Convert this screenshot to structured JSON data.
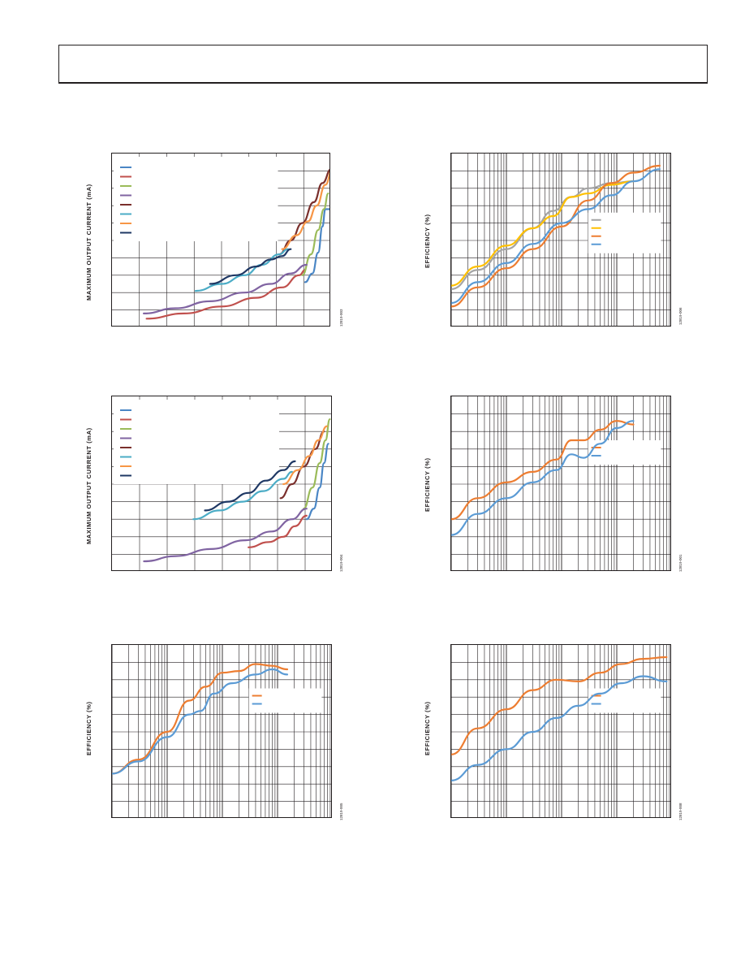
{
  "header": {
    "text": ""
  },
  "chart_data": [
    {
      "id": "fig-05003",
      "type": "line",
      "title": "",
      "ylabel": "MAXIMUM OUTPUT CURRENT (mA)",
      "xlabel": "",
      "xlim": [
        0,
        7.6
      ],
      "ylim": [
        0,
        10
      ],
      "grid": true,
      "log_x": false,
      "legend_position": "top-left",
      "fig_id": "12819-003",
      "series": [
        {
          "color": "#4a86c5",
          "x": [
            6.7,
            6.95,
            7.15,
            7.3,
            7.4,
            7.55
          ],
          "y": [
            2.6,
            3.1,
            4.3,
            5.8,
            6.8,
            6.8
          ]
        },
        {
          "color": "#c0504d",
          "x": [
            1.2,
            2.5,
            3.8,
            5.0,
            5.9,
            6.5,
            6.7
          ],
          "y": [
            0.5,
            0.8,
            1.2,
            1.7,
            2.3,
            3.0,
            3.3
          ]
        },
        {
          "color": "#9bbb59",
          "x": [
            6.6,
            6.9,
            7.15,
            7.35,
            7.5
          ],
          "y": [
            3.0,
            4.2,
            5.6,
            6.8,
            7.7
          ]
        },
        {
          "color": "#8064a2",
          "x": [
            1.1,
            2.2,
            3.4,
            4.6,
            5.5,
            6.2,
            6.75
          ],
          "y": [
            0.8,
            1.1,
            1.5,
            2.0,
            2.5,
            3.1,
            3.6
          ]
        },
        {
          "color": "#7a2f2c",
          "x": [
            5.8,
            6.2,
            6.6,
            7.0,
            7.3,
            7.6
          ],
          "y": [
            4.2,
            5.0,
            6.0,
            7.2,
            8.3,
            9.1
          ]
        },
        {
          "color": "#4bacc6",
          "x": [
            2.9,
            3.8,
            4.6,
            5.2,
            5.8,
            6.1
          ],
          "y": [
            2.1,
            2.5,
            3.0,
            3.6,
            4.2,
            4.5
          ]
        },
        {
          "color": "#f79646",
          "x": [
            5.9,
            6.4,
            6.8,
            7.1,
            7.4,
            7.65
          ],
          "y": [
            4.5,
            5.3,
            6.1,
            7.0,
            8.2,
            9.1
          ]
        },
        {
          "color": "#1f3864",
          "x": [
            3.4,
            4.3,
            5.0,
            5.5,
            5.9,
            6.2
          ],
          "y": [
            2.5,
            3.0,
            3.5,
            3.9,
            4.1,
            4.5
          ]
        }
      ]
    },
    {
      "id": "fig-05006",
      "type": "line",
      "title": "",
      "ylabel": "EFFICIENCY (%)",
      "xlabel": "",
      "xlim": [
        0.01,
        100
      ],
      "ylim": [
        0,
        100
      ],
      "grid": true,
      "log_x": true,
      "legend_position": "right",
      "fig_id": "12819-006",
      "series": [
        {
          "color": "#a5a5a5",
          "x": [
            0.01,
            0.03,
            0.1,
            0.3,
            0.7,
            1.5,
            3,
            8,
            20
          ],
          "y": [
            22,
            33,
            45,
            57,
            67,
            75,
            80,
            83,
            84
          ]
        },
        {
          "color": "#ffc000",
          "x": [
            0.01,
            0.03,
            0.1,
            0.3,
            0.7,
            1.5,
            3,
            8,
            20
          ],
          "y": [
            24,
            35,
            47,
            57,
            64,
            75,
            77,
            82,
            84
          ]
        },
        {
          "color": "#ed7d31",
          "x": [
            0.01,
            0.03,
            0.1,
            0.3,
            1,
            3,
            8,
            20,
            60
          ],
          "y": [
            12,
            23,
            34,
            45,
            58,
            73,
            83,
            89,
            93
          ]
        },
        {
          "color": "#5b9bd5",
          "x": [
            0.01,
            0.03,
            0.1,
            0.3,
            1,
            3,
            8,
            20,
            60
          ],
          "y": [
            14,
            26,
            37,
            48,
            60,
            68,
            76,
            84,
            91
          ]
        }
      ]
    },
    {
      "id": "fig-05004",
      "type": "line",
      "title": "",
      "ylabel": "MAXIMUM OUTPUT CURRENT (mA)",
      "xlabel": "",
      "xlim": [
        0,
        7.6
      ],
      "ylim": [
        0,
        10
      ],
      "grid": true,
      "log_x": false,
      "legend_position": "top-left",
      "fig_id": "12819-004",
      "series": [
        {
          "color": "#4a86c5",
          "x": [
            6.7,
            6.95,
            7.15,
            7.3,
            7.45
          ],
          "y": [
            3.0,
            3.6,
            4.8,
            6.2,
            7.3
          ]
        },
        {
          "color": "#c0504d",
          "x": [
            4.7,
            5.4,
            5.9,
            6.3,
            6.7
          ],
          "y": [
            1.4,
            1.7,
            2.0,
            2.6,
            3.2
          ]
        },
        {
          "color": "#9bbb59",
          "x": [
            6.6,
            6.9,
            7.15,
            7.35,
            7.5
          ],
          "y": [
            3.6,
            4.8,
            6.2,
            7.5,
            8.7
          ]
        },
        {
          "color": "#8064a2",
          "x": [
            1.1,
            2.2,
            3.4,
            4.6,
            5.5,
            6.2,
            6.7
          ],
          "y": [
            0.6,
            0.9,
            1.3,
            1.8,
            2.3,
            3.0,
            3.6
          ]
        },
        {
          "color": "#7a2f2c",
          "x": [
            5.8,
            6.2,
            6.6,
            7.0,
            7.3
          ],
          "y": [
            4.2,
            5.0,
            6.0,
            7.0,
            8.0
          ]
        },
        {
          "color": "#4bacc6",
          "x": [
            2.8,
            3.7,
            4.5,
            5.2,
            5.9,
            6.2
          ],
          "y": [
            3.0,
            3.5,
            4.0,
            4.6,
            5.3,
            5.7
          ]
        },
        {
          "color": "#f79646",
          "x": [
            5.9,
            6.4,
            6.8,
            7.1,
            7.4
          ],
          "y": [
            5.0,
            5.8,
            6.6,
            7.5,
            8.3
          ]
        },
        {
          "color": "#1f3864",
          "x": [
            3.2,
            4.0,
            4.7,
            5.3,
            5.9,
            6.3
          ],
          "y": [
            3.5,
            4.0,
            4.5,
            5.2,
            5.8,
            6.3
          ]
        }
      ]
    },
    {
      "id": "fig-05001",
      "type": "line",
      "title": "",
      "ylabel": "EFFICIENCY (%)",
      "xlabel": "",
      "xlim": [
        0.01,
        100
      ],
      "ylim": [
        0,
        100
      ],
      "grid": true,
      "log_x": true,
      "legend_position": "right",
      "fig_id": "12819-001",
      "series": [
        {
          "color": "#ed7d31",
          "x": [
            0.01,
            0.03,
            0.1,
            0.3,
            0.8,
            1.5,
            2.5,
            5,
            10,
            20
          ],
          "y": [
            30,
            42,
            51,
            57,
            64,
            75,
            75,
            81,
            86,
            84
          ]
        },
        {
          "color": "#5b9bd5",
          "x": [
            0.01,
            0.03,
            0.1,
            0.3,
            0.8,
            1.5,
            2.5,
            5,
            10,
            20
          ],
          "y": [
            21,
            33,
            42,
            51,
            58,
            67,
            65,
            73,
            82,
            86
          ]
        }
      ]
    },
    {
      "id": "fig-05005",
      "type": "line",
      "title": "",
      "ylabel": "EFFICIENCY (%)",
      "xlabel": "",
      "xlim": [
        0.01,
        100
      ],
      "ylim": [
        0,
        100
      ],
      "grid": true,
      "log_x": true,
      "legend_position": "right",
      "fig_id": "12819-005",
      "series": [
        {
          "color": "#ed7d31",
          "x": [
            0.01,
            0.03,
            0.1,
            0.25,
            0.5,
            1,
            2,
            4,
            8,
            15
          ],
          "y": [
            26,
            34,
            50,
            68,
            76,
            84,
            85,
            89,
            88,
            86
          ]
        },
        {
          "color": "#5b9bd5",
          "x": [
            0.01,
            0.03,
            0.1,
            0.25,
            0.4,
            0.7,
            1.5,
            4,
            8,
            15
          ],
          "y": [
            26,
            33,
            47,
            60,
            62,
            72,
            78,
            83,
            86,
            83
          ]
        }
      ]
    },
    {
      "id": "fig-05008",
      "type": "line",
      "title": "",
      "ylabel": "EFFICIENCY (%)",
      "xlabel": "",
      "xlim": [
        0.01,
        100
      ],
      "ylim": [
        0,
        100
      ],
      "grid": true,
      "log_x": true,
      "legend_position": "right",
      "fig_id": "12819-008",
      "series": [
        {
          "color": "#ed7d31",
          "x": [
            0.01,
            0.03,
            0.1,
            0.3,
            0.8,
            2,
            5,
            12,
            30,
            80
          ],
          "y": [
            37,
            52,
            63,
            74,
            80,
            79,
            84,
            89,
            92,
            93
          ]
        },
        {
          "color": "#5b9bd5",
          "x": [
            0.01,
            0.03,
            0.1,
            0.3,
            0.8,
            2,
            5,
            12,
            30,
            80
          ],
          "y": [
            22,
            31,
            40,
            50,
            58,
            65,
            72,
            78,
            82,
            79
          ]
        }
      ]
    }
  ]
}
